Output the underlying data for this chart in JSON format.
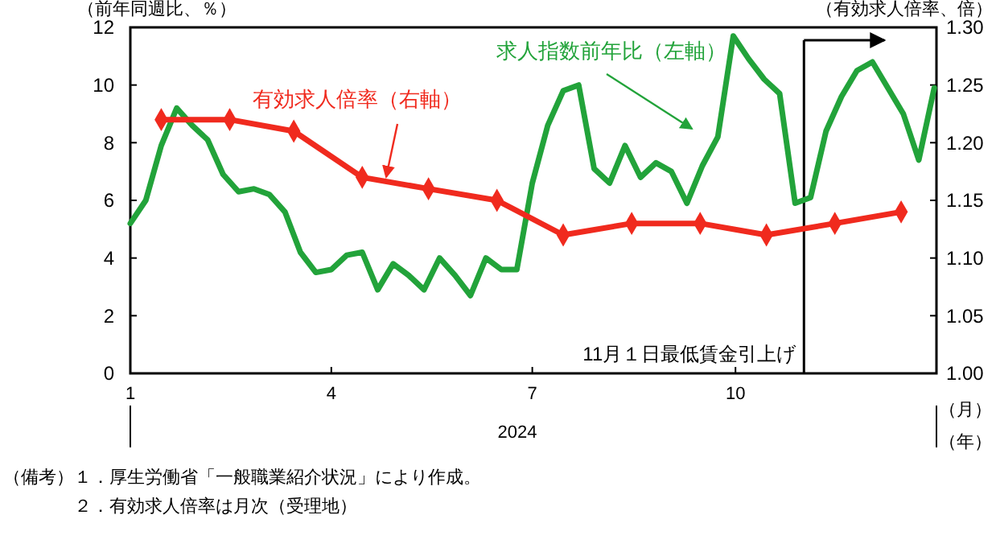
{
  "chart_data": {
    "type": "line",
    "ylabel": "（前年同週比、％）",
    "y2label": "（有効求人倍率、倍）",
    "xlabel": "2024",
    "xlim": [
      "2024-01-01",
      "2024-12-31"
    ],
    "xticks": [
      {
        "value": "2024-01-01",
        "label": "1"
      },
      {
        "value": "2024-04-01",
        "label": "4"
      },
      {
        "value": "2024-07-01",
        "label": "7"
      },
      {
        "value": "2024-10-01",
        "label": "10"
      }
    ],
    "ylim": [
      0,
      12
    ],
    "yticks": [
      0,
      2,
      4,
      6,
      8,
      10,
      12
    ],
    "y2lim": [
      1.0,
      1.3
    ],
    "y2ticks": [
      {
        "value": 1.0,
        "label": "1.00"
      },
      {
        "value": 1.05,
        "label": "1.05"
      },
      {
        "value": 1.1,
        "label": "1.10"
      },
      {
        "value": 1.15,
        "label": "1.15"
      },
      {
        "value": 1.2,
        "label": "1.20"
      },
      {
        "value": 1.25,
        "label": "1.25"
      },
      {
        "value": 1.3,
        "label": "1.30"
      }
    ],
    "grid": false,
    "series": [
      {
        "name": "求人指数前年比（左軸）",
        "color": "#22a33a",
        "marker": "none",
        "x": [
          "2024-01-01",
          "2024-01-08",
          "2024-01-15",
          "2024-01-22",
          "2024-01-29",
          "2024-02-05",
          "2024-02-12",
          "2024-02-19",
          "2024-02-26",
          "2024-03-04",
          "2024-03-11",
          "2024-03-18",
          "2024-03-25",
          "2024-04-01",
          "2024-04-08",
          "2024-04-15",
          "2024-04-22",
          "2024-04-29",
          "2024-05-06",
          "2024-05-13",
          "2024-05-20",
          "2024-05-27",
          "2024-06-03",
          "2024-06-10",
          "2024-06-17",
          "2024-06-24",
          "2024-07-01",
          "2024-07-08",
          "2024-07-15",
          "2024-07-22",
          "2024-07-29",
          "2024-08-05",
          "2024-08-12",
          "2024-08-19",
          "2024-08-26",
          "2024-09-02",
          "2024-09-09",
          "2024-09-16",
          "2024-09-23",
          "2024-09-30",
          "2024-10-07",
          "2024-10-14",
          "2024-10-21",
          "2024-10-28",
          "2024-11-04",
          "2024-11-11",
          "2024-11-18",
          "2024-11-25",
          "2024-12-02",
          "2024-12-09",
          "2024-12-16",
          "2024-12-23",
          "2024-12-30"
        ],
        "values": [
          5.2,
          6.0,
          7.9,
          9.2,
          8.6,
          8.1,
          6.9,
          6.3,
          6.4,
          6.2,
          5.6,
          4.2,
          3.5,
          3.6,
          4.1,
          4.2,
          2.9,
          3.8,
          3.4,
          2.9,
          4.0,
          3.4,
          2.7,
          4.0,
          3.6,
          3.6,
          6.6,
          8.6,
          9.8,
          10.0,
          7.1,
          6.6,
          7.9,
          6.8,
          7.3,
          7.0,
          5.9,
          7.2,
          8.2,
          11.7,
          10.9,
          10.2,
          9.7,
          5.9,
          6.1,
          8.4,
          9.6,
          10.5,
          10.8,
          9.9,
          9.0,
          7.4,
          9.9
        ]
      },
      {
        "name": "有効求人倍率（右軸）",
        "color": "#f02a1e",
        "axis": "y2",
        "marker": "diamond",
        "x": [
          "2024-01-15",
          "2024-02-15",
          "2024-03-15",
          "2024-04-15",
          "2024-05-15",
          "2024-06-15",
          "2024-07-15",
          "2024-08-15",
          "2024-09-15",
          "2024-10-15",
          "2024-11-15",
          "2024-12-15"
        ],
        "values": [
          1.22,
          1.22,
          1.21,
          1.17,
          1.16,
          1.15,
          1.12,
          1.13,
          1.13,
          1.12,
          1.13,
          1.14
        ]
      }
    ],
    "ref_lines": [
      {
        "axis": "x",
        "value": "2024-11-01",
        "label": "11月１日最低賃金引上げ",
        "color": "#000000"
      }
    ],
    "annotations": [
      "（月）",
      "（年）",
      "（備考）",
      "１．厚生労働省「一般職業紹介状況」により作成。",
      "２．有効求人倍率は月次（受理地）"
    ]
  }
}
